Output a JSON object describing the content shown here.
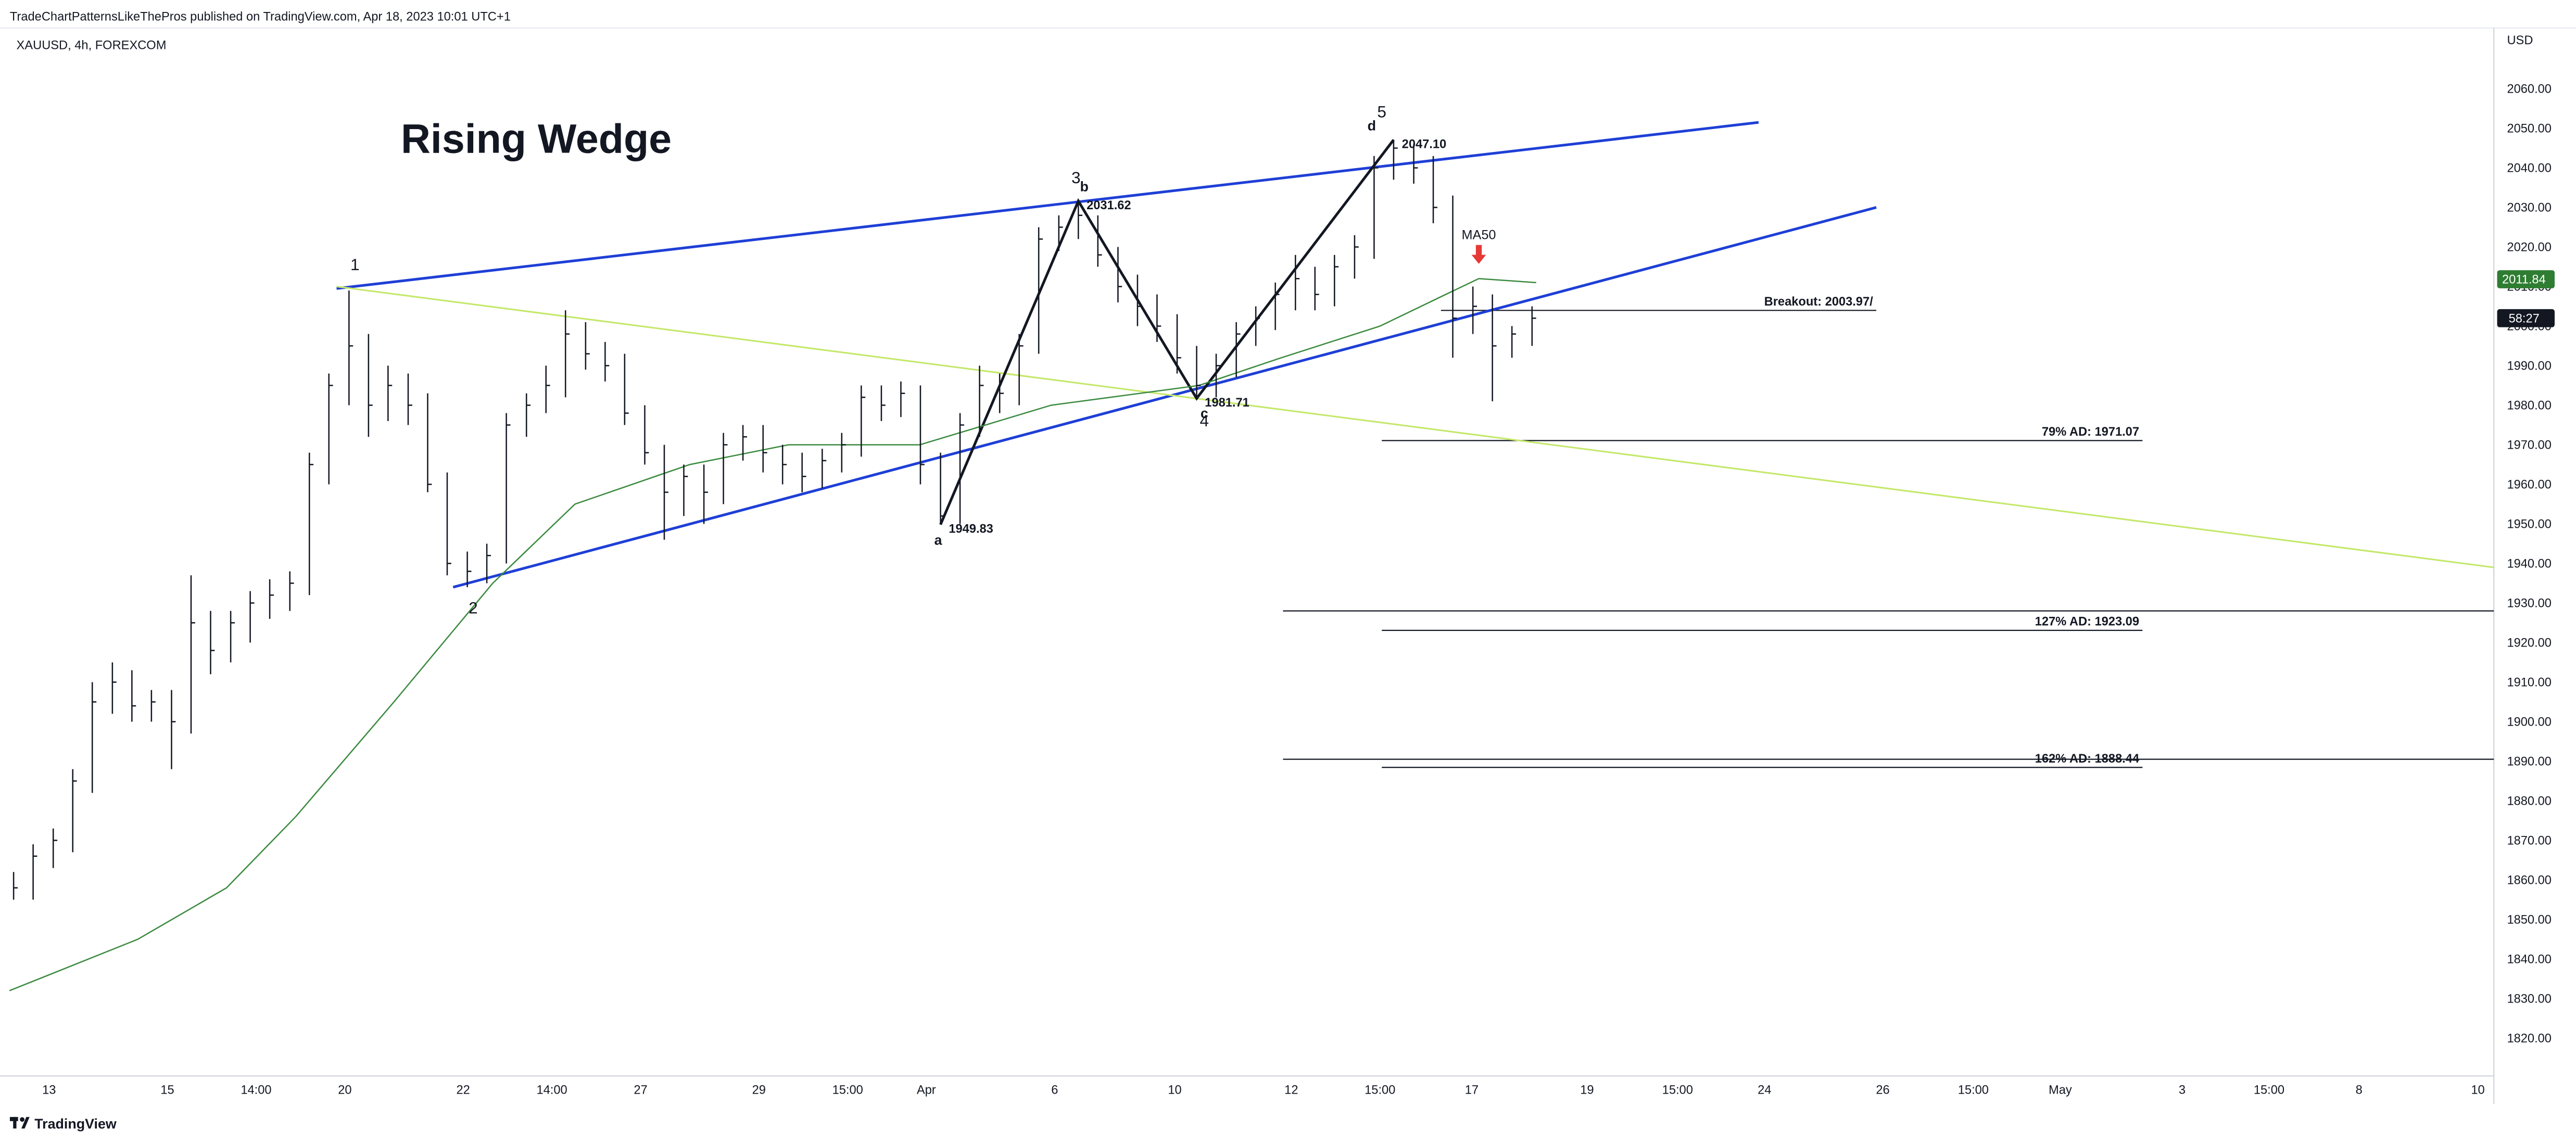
{
  "header": {
    "published": "TradeChartPatternsLikeThePros published on TradingView.com, Apr 18, 2023 10:01 UTC+1",
    "symbol": "XAUUSD, 4h, FOREXCOM",
    "currency": "USD",
    "brand": "TradingView",
    "countdown": "58:27"
  },
  "chart_data": {
    "type": "ohlc",
    "title": "Rising Wedge",
    "xlim": [
      -0.83,
      41.33
    ],
    "ylim": [
      1810.45,
      2075.37
    ],
    "grid": false,
    "xticks": [
      {
        "value": 0,
        "label": "13"
      },
      {
        "value": 2,
        "label": "15"
      },
      {
        "value": 3.5,
        "label": "14:00"
      },
      {
        "value": 5,
        "label": "20"
      },
      {
        "value": 7,
        "label": "22"
      },
      {
        "value": 8.5,
        "label": "14:00"
      },
      {
        "value": 10,
        "label": "27"
      },
      {
        "value": 12,
        "label": "29"
      },
      {
        "value": 13.5,
        "label": "15:00"
      },
      {
        "value": 14.83,
        "label": "Apr"
      },
      {
        "value": 17,
        "label": "6"
      },
      {
        "value": 19.03,
        "label": "10"
      },
      {
        "value": 21,
        "label": "12"
      },
      {
        "value": 22.5,
        "label": "15:00"
      },
      {
        "value": 24.05,
        "label": "17"
      },
      {
        "value": 26,
        "label": "19"
      },
      {
        "value": 27.53,
        "label": "15:00"
      },
      {
        "value": 29,
        "label": "24"
      },
      {
        "value": 31,
        "label": "26"
      },
      {
        "value": 32.53,
        "label": "15:00"
      },
      {
        "value": 34,
        "label": "May"
      },
      {
        "value": 36.06,
        "label": "3"
      },
      {
        "value": 37.53,
        "label": "15:00"
      },
      {
        "value": 39.05,
        "label": "8"
      },
      {
        "value": 41.06,
        "label": "10"
      }
    ],
    "yticks": [
      {
        "value": 1820,
        "label": "1820.00"
      },
      {
        "value": 1830,
        "label": "1830.00"
      },
      {
        "value": 1840,
        "label": "1840.00"
      },
      {
        "value": 1850,
        "label": "1850.00"
      },
      {
        "value": 1860,
        "label": "1860.00"
      },
      {
        "value": 1870,
        "label": "1870.00"
      },
      {
        "value": 1880,
        "label": "1880.00"
      },
      {
        "value": 1890,
        "label": "1890.00"
      },
      {
        "value": 1900,
        "label": "1900.00"
      },
      {
        "value": 1910,
        "label": "1910.00"
      },
      {
        "value": 1920,
        "label": "1920.00"
      },
      {
        "value": 1930,
        "label": "1930.00"
      },
      {
        "value": 1940,
        "label": "1940.00"
      },
      {
        "value": 1950,
        "label": "1950.00"
      },
      {
        "value": 1960,
        "label": "1960.00"
      },
      {
        "value": 1970,
        "label": "1970.00"
      },
      {
        "value": 1980,
        "label": "1980.00"
      },
      {
        "value": 1990,
        "label": "1990.00"
      },
      {
        "value": 2000,
        "label": "2000.00"
      },
      {
        "value": 2010,
        "label": "2010.00"
      },
      {
        "value": 2020,
        "label": "2020.00"
      },
      {
        "value": 2030,
        "label": "2030.00"
      },
      {
        "value": 2040,
        "label": "2040.00"
      },
      {
        "value": 2050,
        "label": "2050.00"
      },
      {
        "value": 2060,
        "label": "2060.00"
      }
    ],
    "bars": {
      "color": "#131722",
      "x": [
        -0.6,
        -0.27,
        0.07,
        0.4,
        0.73,
        1.07,
        1.4,
        1.73,
        2.07,
        2.4,
        2.73,
        3.07,
        3.4,
        3.73,
        4.07,
        4.4,
        4.73,
        5.07,
        5.4,
        5.73,
        6.07,
        6.4,
        6.73,
        7.07,
        7.4,
        7.73,
        8.07,
        8.4,
        8.73,
        9.07,
        9.4,
        9.73,
        10.07,
        10.4,
        10.73,
        11.07,
        11.4,
        11.73,
        12.07,
        12.4,
        12.73,
        13.07,
        13.4,
        13.73,
        14.07,
        14.4,
        14.73,
        15.07,
        15.4,
        15.73,
        16.07,
        16.4,
        16.73,
        17.07,
        17.4,
        17.73,
        18.07,
        18.4,
        18.73,
        19.07,
        19.4,
        19.73,
        20.07,
        20.4,
        20.73,
        21.07,
        21.4,
        21.73,
        22.07,
        22.4,
        22.73,
        23.07,
        23.4,
        23.73,
        24.07,
        24.4,
        24.73,
        25.07
      ],
      "high": [
        1862,
        1869,
        1873,
        1888,
        1910,
        1915,
        1913,
        1908,
        1908,
        1937,
        1928,
        1928,
        1933,
        1936,
        1938,
        1968,
        1988,
        2009,
        1998,
        1990,
        1988,
        1983,
        1963,
        1943,
        1945,
        1978,
        1983,
        1990,
        2004,
        2001,
        1996,
        1993,
        1980,
        1970,
        1965,
        1965,
        1973,
        1975,
        1975,
        1970,
        1968,
        1969,
        1973,
        1985,
        1985,
        1986,
        1985,
        1968,
        1978,
        1990,
        1988,
        1998,
        2025,
        2028,
        2031.62,
        2028,
        2020,
        2013,
        2008,
        2003,
        1995,
        1993,
        2001,
        2005,
        2011,
        2018,
        2015,
        2018,
        2023,
        2043,
        2047.1,
        2046,
        2043,
        2033,
        2010,
        2008,
        2000,
        2005
      ],
      "low": [
        1855,
        1855,
        1863,
        1867,
        1882,
        1902,
        1900,
        1900,
        1888,
        1897,
        1912,
        1915,
        1920,
        1926,
        1928,
        1932,
        1960,
        1980,
        1972,
        1976,
        1975,
        1958,
        1937,
        1934,
        1935,
        1940,
        1972,
        1978,
        1982,
        1989,
        1986,
        1975,
        1965,
        1946,
        1952,
        1950,
        1955,
        1966,
        1963,
        1960,
        1958,
        1959,
        1963,
        1967,
        1976,
        1977,
        1960,
        1949.83,
        1950,
        1972,
        1978,
        1980,
        1993,
        2019,
        2022,
        2015,
        2006,
        2000,
        1996,
        1988,
        1981.71,
        1982,
        1987,
        1995,
        1999,
        2004,
        2004,
        2005,
        2012,
        2017,
        2037,
        2036,
        2026,
        1992,
        1998,
        1981,
        1992,
        1995
      ],
      "close": [
        1858,
        1866,
        1870,
        1885,
        1905,
        1910,
        1904,
        1905,
        1900,
        1925,
        1918,
        1925,
        1930,
        1932,
        1935,
        1965,
        1985,
        1995,
        1980,
        1985,
        1980,
        1960,
        1940,
        1938,
        1942,
        1975,
        1980,
        1985,
        1998,
        1993,
        1990,
        1978,
        1968,
        1958,
        1962,
        1958,
        1970,
        1972,
        1968,
        1965,
        1962,
        1966,
        1970,
        1982,
        1980,
        1983,
        1965,
        1952,
        1975,
        1985,
        1983,
        1995,
        2022,
        2025,
        2028,
        2018,
        2010,
        2005,
        2000,
        1992,
        1985,
        1990,
        1998,
        2002,
        2008,
        2012,
        2008,
        2015,
        2020,
        2040,
        2045,
        2040,
        2030,
        2002,
        2005,
        1995,
        1998,
        2002
      ]
    },
    "ma50": {
      "color": "#3a8a3e",
      "x": [
        -0.67,
        1.5,
        3,
        4.17,
        5.83,
        7.5,
        8.89,
        10.83,
        12.5,
        14.72,
        16.94,
        19.44,
        20.83,
        22.5,
        23.61,
        24.17,
        25.14
      ],
      "values": [
        1832,
        1845,
        1858,
        1876,
        1905,
        1935,
        1955,
        1965,
        1970,
        1970,
        1980,
        1985,
        1992,
        2000,
        2008,
        2012,
        2011
      ]
    },
    "trendlines": [
      {
        "color": "#1e3fd6",
        "x": [
          4.86,
          28.9
        ],
        "y": [
          2009.5,
          2051.5
        ]
      },
      {
        "color": "#1e3fd6",
        "x": [
          6.83,
          30.89
        ],
        "y": [
          1934,
          2030
        ]
      },
      {
        "color": "#c5e86c",
        "x": [
          4.86,
          41.33
        ],
        "y": [
          2010,
          1939
        ]
      },
      {
        "color": "#131722",
        "x": [
          15.07,
          17.4,
          19.4,
          22.73
        ],
        "y": [
          1949.83,
          2031.62,
          1981.71,
          2047.1
        ]
      }
    ],
    "levels": [
      {
        "value": 2003.97,
        "label": "Breakout: 2003.97/",
        "x": [
          23.53,
          30.89
        ]
      },
      {
        "value": 1971.07,
        "label": "79% AD: 1971.07",
        "x": [
          22.53,
          35.39
        ]
      },
      {
        "value": 1923.09,
        "label": "127% AD: 1923.09",
        "x": [
          22.53,
          35.39
        ]
      },
      {
        "value": 1888.44,
        "label": "162% AD: 1888.44",
        "x": [
          22.53,
          35.39
        ]
      },
      {
        "value": 1928,
        "x": [
          20.86,
          41.33
        ]
      },
      {
        "value": 1890.5,
        "x": [
          20.86,
          41.33
        ]
      }
    ],
    "price_labels": [
      {
        "value": 2031.62,
        "label": "2031.62",
        "x": 17.4
      },
      {
        "value": 1981.71,
        "label": "1981.71",
        "x": 19.4
      },
      {
        "value": 1949.83,
        "label": "1949.83",
        "x": 15.07
      },
      {
        "value": 2047.1,
        "label": "2047.10",
        "x": 22.73
      }
    ],
    "wave_labels": [
      {
        "label": "1",
        "x": 5.17,
        "y": 2015.6
      },
      {
        "label": "2",
        "x": 7.17,
        "y": 1928.8
      },
      {
        "label": "3",
        "x": 17.36,
        "y": 2037.6
      },
      {
        "label": "4",
        "x": 19.53,
        "y": 1976.1
      },
      {
        "label": "5",
        "x": 22.53,
        "y": 2054.2
      },
      {
        "label": "a",
        "x": 15.03,
        "y": 1946.2,
        "weight": "bold"
      },
      {
        "label": "b",
        "x": 17.5,
        "y": 2035.5,
        "weight": "bold"
      },
      {
        "label": "c",
        "x": 19.53,
        "y": 1978.2,
        "weight": "bold"
      },
      {
        "label": "d",
        "x": 22.36,
        "y": 2050.9,
        "weight": "bold"
      }
    ],
    "marker": {
      "label": "MA50",
      "x": 24.17,
      "y": 2023,
      "color": "#e53935"
    },
    "axis_badges": [
      {
        "value": 2011.84,
        "label": "2011.84",
        "color": "#2e7d32"
      }
    ]
  }
}
